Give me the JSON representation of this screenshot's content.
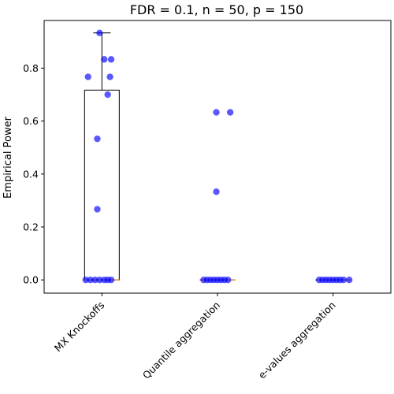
{
  "chart_data": {
    "type": "box",
    "title": "FDR = 0.1, n = 50, p = 150",
    "xlabel": "",
    "ylabel": "Empirical Power",
    "ylim": [
      -0.05,
      0.98
    ],
    "yticks": [
      0.0,
      0.2,
      0.4,
      0.6,
      0.8
    ],
    "ytick_labels": [
      "0.0",
      "0.2",
      "0.4",
      "0.6",
      "0.8"
    ],
    "categories": [
      "MX Knockoffs",
      "Quantile aggregation",
      "e-values aggregation"
    ],
    "grid": false,
    "legend": "none",
    "colors": {
      "box": "#000000",
      "median": "#ff7f0e",
      "points": "#0000ff"
    },
    "boxes": [
      {
        "q1": 0.0,
        "median": 0.0,
        "q3": 0.717,
        "whisker_low": 0.0,
        "whisker_high": 0.933
      },
      {
        "q1": 0.0,
        "median": 0.0,
        "q3": 0.0,
        "whisker_low": 0.0,
        "whisker_high": 0.0
      },
      {
        "q1": 0.0,
        "median": 0.0,
        "q3": 0.0,
        "whisker_low": 0.0,
        "whisker_high": 0.0
      }
    ],
    "points": [
      [
        {
          "j": -0.02,
          "v": 0.933
        },
        {
          "j": 0.02,
          "v": 0.833
        },
        {
          "j": 0.08,
          "v": 0.833
        },
        {
          "j": -0.12,
          "v": 0.767
        },
        {
          "j": 0.07,
          "v": 0.767
        },
        {
          "j": 0.05,
          "v": 0.7
        },
        {
          "j": -0.04,
          "v": 0.533
        },
        {
          "j": -0.04,
          "v": 0.267
        },
        {
          "j": -0.14,
          "v": 0.0
        },
        {
          "j": -0.1,
          "v": 0.0
        },
        {
          "j": -0.06,
          "v": 0.0
        },
        {
          "j": -0.02,
          "v": 0.0
        },
        {
          "j": 0.02,
          "v": 0.0
        },
        {
          "j": 0.05,
          "v": 0.0
        },
        {
          "j": 0.08,
          "v": 0.0
        }
      ],
      [
        {
          "j": -0.01,
          "v": 0.633
        },
        {
          "j": 0.11,
          "v": 0.633
        },
        {
          "j": -0.01,
          "v": 0.333
        },
        {
          "j": -0.12,
          "v": 0.0
        },
        {
          "j": -0.09,
          "v": 0.0
        },
        {
          "j": -0.06,
          "v": 0.0
        },
        {
          "j": -0.03,
          "v": 0.0
        },
        {
          "j": 0.0,
          "v": 0.0
        },
        {
          "j": 0.03,
          "v": 0.0
        },
        {
          "j": 0.06,
          "v": 0.0
        },
        {
          "j": 0.09,
          "v": 0.0
        }
      ],
      [
        {
          "j": -0.12,
          "v": 0.0
        },
        {
          "j": -0.09,
          "v": 0.0
        },
        {
          "j": -0.06,
          "v": 0.0
        },
        {
          "j": -0.03,
          "v": 0.0
        },
        {
          "j": 0.0,
          "v": 0.0
        },
        {
          "j": 0.03,
          "v": 0.0
        },
        {
          "j": 0.06,
          "v": 0.0
        },
        {
          "j": 0.09,
          "v": 0.0
        },
        {
          "j": 0.14,
          "v": 0.0
        }
      ]
    ]
  }
}
